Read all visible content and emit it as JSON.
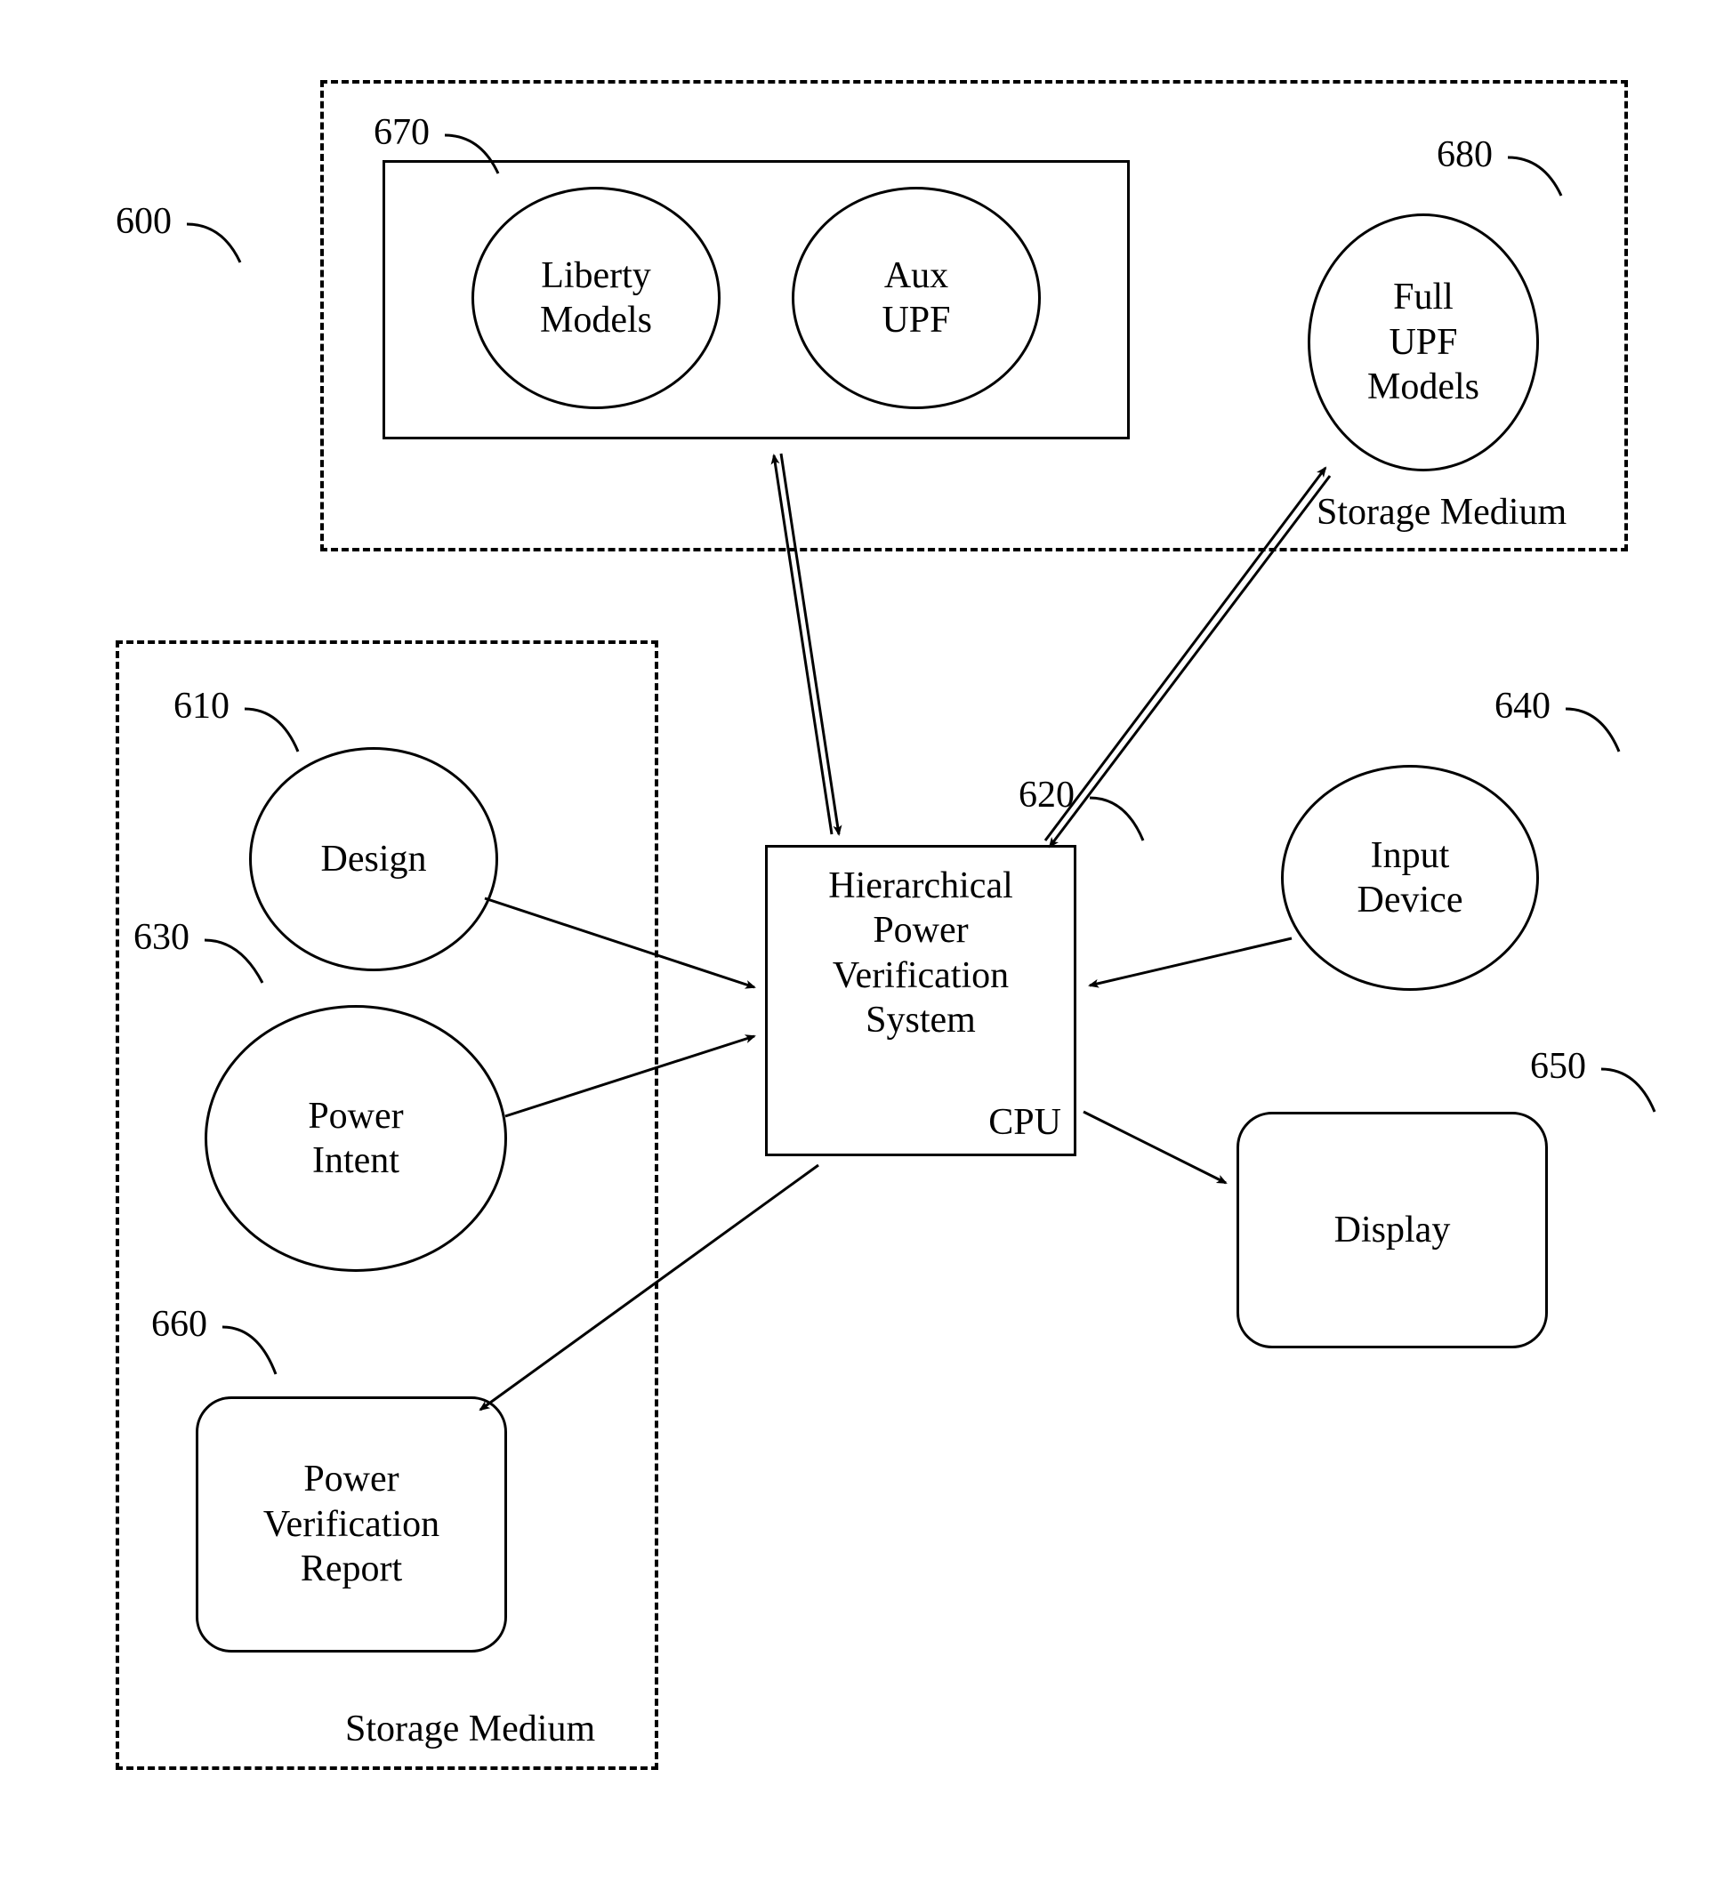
{
  "diagram": {
    "type": "flowchart",
    "colors": {
      "stroke": "#000000",
      "background": "#ffffff",
      "text": "#000000"
    },
    "font_family": "Times New Roman",
    "font_size_pt": 32,
    "ref_labels": {
      "overall": "600",
      "design": "610",
      "hpvs": "620",
      "power_intent": "630",
      "input_device": "640",
      "display": "650",
      "power_report": "660",
      "liberty_group": "670",
      "full_upf": "680"
    },
    "nodes": {
      "liberty_models": {
        "label": "Liberty\nModels"
      },
      "aux_upf": {
        "label": "Aux\nUPF"
      },
      "full_upf": {
        "label": "Full\nUPF\nModels"
      },
      "design": {
        "label": "Design"
      },
      "power_intent": {
        "label": "Power\nIntent"
      },
      "hpvs": {
        "label": "Hierarchical\nPower\nVerification\nSystem",
        "sub_label": "CPU"
      },
      "input_device": {
        "label": "Input\nDevice"
      },
      "display": {
        "label": "Display"
      },
      "power_report": {
        "label": "Power\nVerification\nReport"
      }
    },
    "labels": {
      "storage_top": "Storage Medium",
      "storage_bottom": "Storage Medium"
    },
    "edges": [
      {
        "from": "liberty_group",
        "to": "hpvs",
        "bidirectional": true
      },
      {
        "from": "full_upf",
        "to": "hpvs",
        "bidirectional": true
      },
      {
        "from": "design",
        "to": "hpvs"
      },
      {
        "from": "power_intent",
        "to": "hpvs"
      },
      {
        "from": "input_device",
        "to": "hpvs"
      },
      {
        "from": "hpvs",
        "to": "display"
      },
      {
        "from": "hpvs",
        "to": "power_report"
      }
    ],
    "stroke_width": 3
  }
}
